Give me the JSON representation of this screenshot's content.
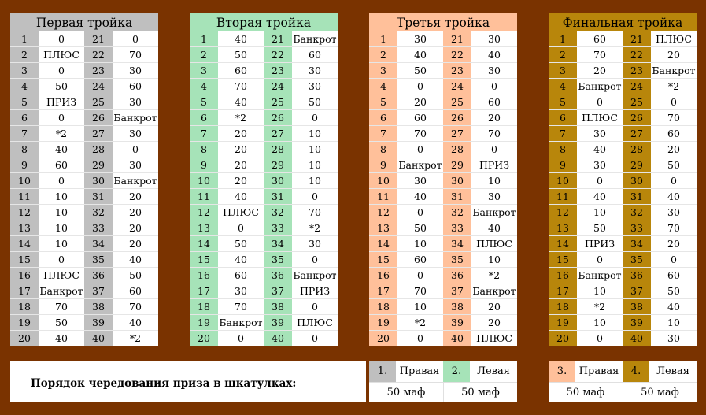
{
  "colors": {
    "background": "#7a3300",
    "board1_header": "#bfbfbf",
    "board2_header": "#a6e3b8",
    "board3_header": "#ffc09a",
    "board4_header": "#b8860b"
  },
  "boards": [
    {
      "title": "Первая тройка",
      "rows": [
        [
          "1",
          "0",
          "21",
          "0"
        ],
        [
          "2",
          "ПЛЮС",
          "22",
          "70"
        ],
        [
          "3",
          "0",
          "23",
          "30"
        ],
        [
          "4",
          "50",
          "24",
          "60"
        ],
        [
          "5",
          "ПРИЗ",
          "25",
          "30"
        ],
        [
          "6",
          "0",
          "26",
          "Банкрот"
        ],
        [
          "7",
          "*2",
          "27",
          "30"
        ],
        [
          "8",
          "40",
          "28",
          "0"
        ],
        [
          "9",
          "60",
          "29",
          "30"
        ],
        [
          "10",
          "0",
          "30",
          "Банкрот"
        ],
        [
          "11",
          "10",
          "31",
          "20"
        ],
        [
          "12",
          "10",
          "32",
          "20"
        ],
        [
          "13",
          "10",
          "33",
          "20"
        ],
        [
          "14",
          "10",
          "34",
          "20"
        ],
        [
          "15",
          "0",
          "35",
          "40"
        ],
        [
          "16",
          "ПЛЮС",
          "36",
          "50"
        ],
        [
          "17",
          "Банкрот",
          "37",
          "60"
        ],
        [
          "18",
          "70",
          "38",
          "70"
        ],
        [
          "19",
          "50",
          "39",
          "40"
        ],
        [
          "20",
          "40",
          "40",
          "*2"
        ]
      ]
    },
    {
      "title": "Вторая тройка",
      "rows": [
        [
          "1",
          "40",
          "21",
          "Банкрот"
        ],
        [
          "2",
          "50",
          "22",
          "60"
        ],
        [
          "3",
          "60",
          "23",
          "30"
        ],
        [
          "4",
          "70",
          "24",
          "30"
        ],
        [
          "5",
          "40",
          "25",
          "50"
        ],
        [
          "6",
          "*2",
          "26",
          "0"
        ],
        [
          "7",
          "20",
          "27",
          "10"
        ],
        [
          "8",
          "20",
          "28",
          "10"
        ],
        [
          "9",
          "20",
          "29",
          "10"
        ],
        [
          "10",
          "20",
          "30",
          "10"
        ],
        [
          "11",
          "40",
          "31",
          "0"
        ],
        [
          "12",
          "ПЛЮС",
          "32",
          "70"
        ],
        [
          "13",
          "0",
          "33",
          "*2"
        ],
        [
          "14",
          "50",
          "34",
          "30"
        ],
        [
          "15",
          "40",
          "35",
          "0"
        ],
        [
          "16",
          "60",
          "36",
          "Банкрот"
        ],
        [
          "17",
          "30",
          "37",
          "ПРИЗ"
        ],
        [
          "18",
          "70",
          "38",
          "0"
        ],
        [
          "19",
          "Банкрот",
          "39",
          "ПЛЮС"
        ],
        [
          "20",
          "0",
          "40",
          "0"
        ]
      ]
    },
    {
      "title": "Третья тройка",
      "rows": [
        [
          "1",
          "30",
          "21",
          "30"
        ],
        [
          "2",
          "40",
          "22",
          "40"
        ],
        [
          "3",
          "50",
          "23",
          "30"
        ],
        [
          "4",
          "0",
          "24",
          "0"
        ],
        [
          "5",
          "20",
          "25",
          "60"
        ],
        [
          "6",
          "60",
          "26",
          "20"
        ],
        [
          "7",
          "70",
          "27",
          "70"
        ],
        [
          "8",
          "0",
          "28",
          "0"
        ],
        [
          "9",
          "Банкрот",
          "29",
          "ПРИЗ"
        ],
        [
          "10",
          "30",
          "30",
          "10"
        ],
        [
          "11",
          "40",
          "31",
          "30"
        ],
        [
          "12",
          "0",
          "32",
          "Банкрот"
        ],
        [
          "13",
          "50",
          "33",
          "40"
        ],
        [
          "14",
          "10",
          "34",
          "ПЛЮС"
        ],
        [
          "15",
          "60",
          "35",
          "10"
        ],
        [
          "16",
          "0",
          "36",
          "*2"
        ],
        [
          "17",
          "70",
          "37",
          "Банкрот"
        ],
        [
          "18",
          "10",
          "38",
          "20"
        ],
        [
          "19",
          "*2",
          "39",
          "20"
        ],
        [
          "20",
          "0",
          "40",
          "ПЛЮС"
        ]
      ]
    },
    {
      "title": "Финальная тройка",
      "rows": [
        [
          "1",
          "60",
          "21",
          "ПЛЮС"
        ],
        [
          "2",
          "70",
          "22",
          "20"
        ],
        [
          "3",
          "20",
          "23",
          "Банкрот"
        ],
        [
          "4",
          "Банкрот",
          "24",
          "*2"
        ],
        [
          "5",
          "0",
          "25",
          "0"
        ],
        [
          "6",
          "ПЛЮС",
          "26",
          "70"
        ],
        [
          "7",
          "30",
          "27",
          "60"
        ],
        [
          "8",
          "40",
          "28",
          "20"
        ],
        [
          "9",
          "30",
          "29",
          "50"
        ],
        [
          "10",
          "0",
          "30",
          "0"
        ],
        [
          "11",
          "40",
          "31",
          "40"
        ],
        [
          "12",
          "10",
          "32",
          "30"
        ],
        [
          "13",
          "50",
          "33",
          "70"
        ],
        [
          "14",
          "ПРИЗ",
          "34",
          "20"
        ],
        [
          "15",
          "0",
          "35",
          "0"
        ],
        [
          "16",
          "Банкрот",
          "36",
          "60"
        ],
        [
          "17",
          "10",
          "37",
          "50"
        ],
        [
          "18",
          "*2",
          "38",
          "40"
        ],
        [
          "19",
          "10",
          "39",
          "10"
        ],
        [
          "20",
          "0",
          "40",
          "30"
        ]
      ]
    }
  ],
  "order": {
    "caption": "Порядок чередования приза в шкатулках:",
    "items": [
      {
        "num": "1.",
        "side": "Правая",
        "amount": "50 маф"
      },
      {
        "num": "2.",
        "side": "Левая",
        "amount": "50 маф"
      },
      {
        "num": "3.",
        "side": "Правая",
        "amount": "50 маф"
      },
      {
        "num": "4.",
        "side": "Левая",
        "amount": "50 маф"
      }
    ]
  }
}
